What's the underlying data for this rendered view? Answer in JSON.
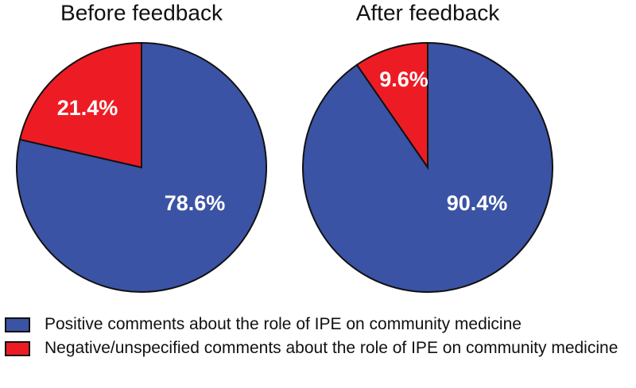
{
  "chart_data": [
    {
      "type": "pie",
      "title": "Before feedback",
      "values": [
        78.6,
        21.4
      ],
      "value_labels": [
        "78.6%",
        "21.4%"
      ],
      "colors": [
        "#3b53a4",
        "#ed1c24"
      ]
    },
    {
      "type": "pie",
      "title": "After feedback",
      "values": [
        90.4,
        9.6
      ],
      "value_labels": [
        "90.4%",
        "9.6%"
      ],
      "colors": [
        "#3b53a4",
        "#ed1c24"
      ]
    }
  ],
  "legend": {
    "entries": [
      "Positive comments about the role of IPE on community medicine",
      "Negative/unspecified comments about the role of IPE on community medicine"
    ]
  }
}
